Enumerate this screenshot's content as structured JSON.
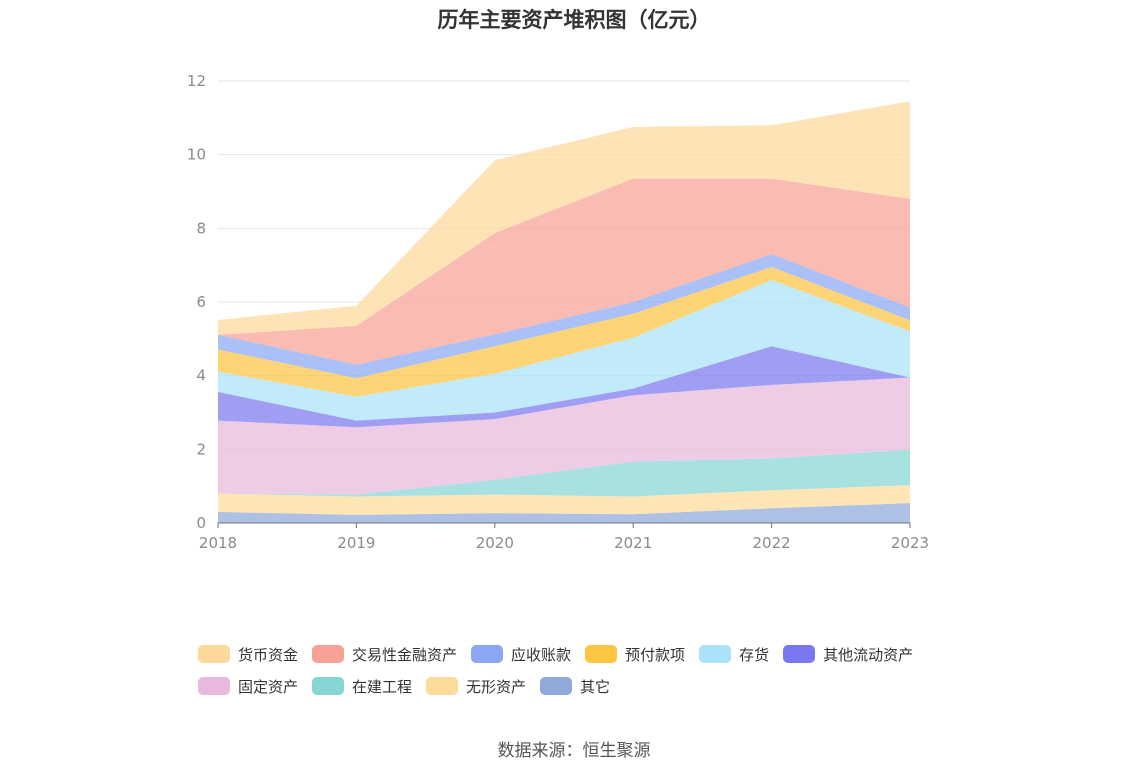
{
  "title": "历年主要资产堆积图（亿元）",
  "source": "数据来源：恒生聚源",
  "chart_data": {
    "type": "area",
    "stacked": true,
    "categories": [
      "2018",
      "2019",
      "2020",
      "2021",
      "2022",
      "2023"
    ],
    "ylim": [
      0,
      12
    ],
    "yticks": [
      0,
      2,
      4,
      6,
      8,
      10,
      12
    ],
    "grid": true,
    "legend_position": "bottom",
    "series": [
      {
        "name": "其它",
        "color": "#8fa9d9",
        "values": [
          0.3,
          0.22,
          0.27,
          0.24,
          0.4,
          0.54
        ]
      },
      {
        "name": "无形资产",
        "color": "#fddb9a",
        "values": [
          0.5,
          0.5,
          0.5,
          0.48,
          0.49,
          0.49
        ]
      },
      {
        "name": "在建工程",
        "color": "#86d6d4",
        "values": [
          0.0,
          0.05,
          0.4,
          0.95,
          0.86,
          0.96
        ]
      },
      {
        "name": "固定资产",
        "color": "#e8b9dc",
        "values": [
          1.98,
          1.83,
          1.65,
          1.8,
          2.0,
          1.96
        ]
      },
      {
        "name": "其他流动资产",
        "color": "#7a78ef",
        "values": [
          0.78,
          0.18,
          0.18,
          0.18,
          1.05,
          0.0
        ]
      },
      {
        "name": "存货",
        "color": "#a9e2f9",
        "values": [
          0.55,
          0.65,
          1.05,
          1.38,
          1.8,
          1.25
        ]
      },
      {
        "name": "预付款项",
        "color": "#fdc541",
        "values": [
          0.6,
          0.5,
          0.75,
          0.65,
          0.35,
          0.3
        ]
      },
      {
        "name": "应收账款",
        "color": "#8ba7f4",
        "values": [
          0.4,
          0.37,
          0.32,
          0.32,
          0.35,
          0.35
        ]
      },
      {
        "name": "交易性金融资产",
        "color": "#f8a196",
        "values": [
          0.0,
          1.05,
          2.75,
          3.35,
          2.05,
          2.95
        ]
      },
      {
        "name": "货币资金",
        "color": "#fdd89a",
        "values": [
          0.4,
          0.55,
          1.98,
          1.4,
          1.45,
          2.65
        ]
      }
    ],
    "legend_rows": [
      [
        "货币资金",
        "交易性金融资产",
        "应收账款",
        "预付款项",
        "存货",
        "其他流动资产"
      ],
      [
        "固定资产",
        "在建工程",
        "无形资产",
        "其它"
      ]
    ]
  }
}
